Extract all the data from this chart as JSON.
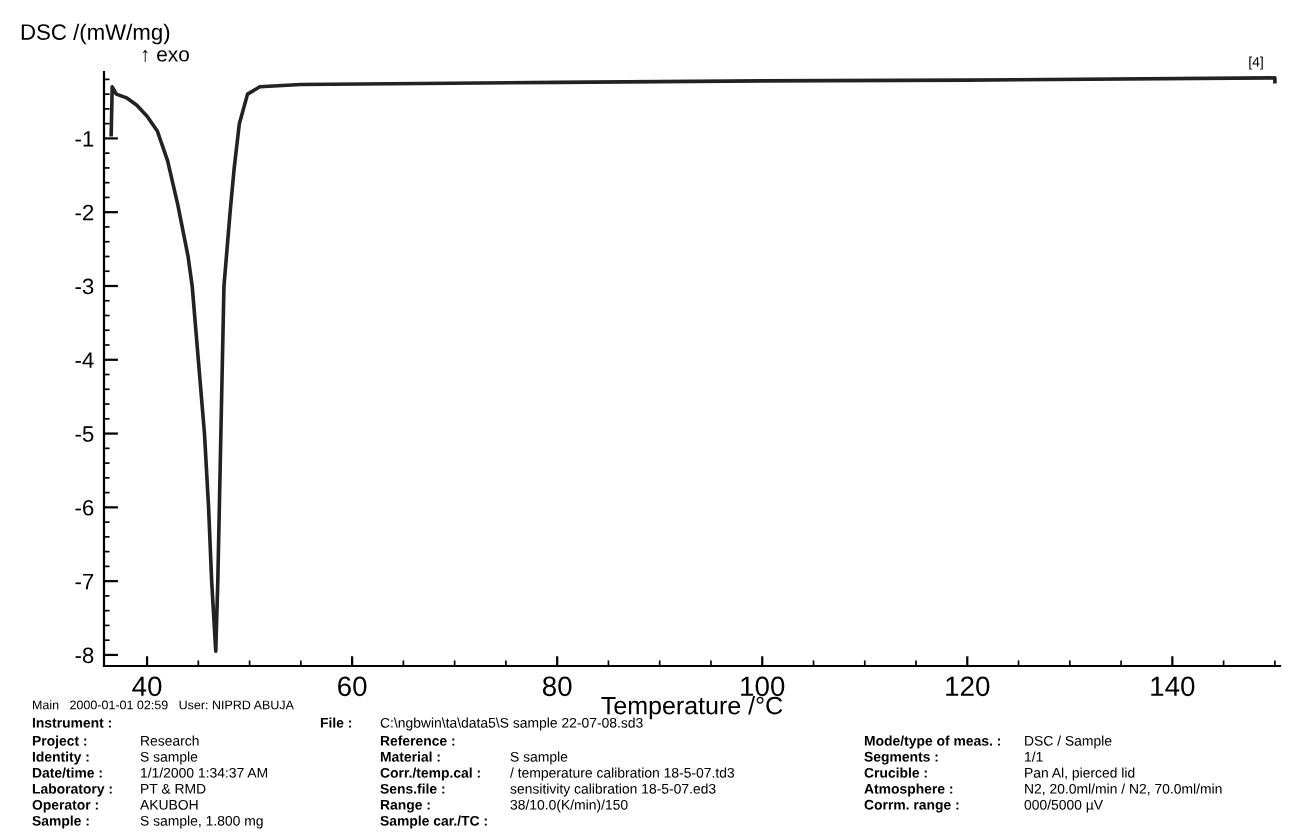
{
  "chart_data": {
    "type": "line",
    "xlabel": "Temperature /°C",
    "ylabel": "DSC /(mW/mg)",
    "xlim": [
      35.8,
      150.5
    ],
    "xticks": [
      40,
      60,
      80,
      100,
      120,
      140
    ],
    "ylim": [
      -8.15,
      -0.1
    ],
    "yticks": [
      -1,
      -2,
      -3,
      -4,
      -5,
      -6,
      -7,
      -8
    ],
    "grid": false,
    "legend": false,
    "marker": "none",
    "line_style": "solid",
    "series": [
      {
        "color": "#222222",
        "x": [
          36.5,
          36.6,
          37,
          38,
          39,
          40,
          41,
          42,
          43,
          44,
          44.4,
          45,
          45.6,
          46,
          46.3,
          46.7,
          46.9,
          47.05,
          47.2,
          47.35,
          47.5,
          48.1,
          48.5,
          49,
          49.8,
          51,
          55,
          80,
          100,
          120,
          150,
          150
        ],
        "values": [
          -0.95,
          -0.3,
          -0.4,
          -0.45,
          -0.55,
          -0.7,
          -0.9,
          -1.3,
          -1.9,
          -2.6,
          -3,
          -4,
          -5,
          -6,
          -7,
          -7.95,
          -7,
          -6,
          -5,
          -4,
          -3,
          -2,
          -1.4,
          -0.8,
          -0.4,
          -0.3,
          -0.27,
          -0.24,
          -0.22,
          -0.21,
          -0.18,
          -0.23
        ]
      }
    ],
    "annotations": [
      "↑ exo",
      {
        "text": "[4]",
        "x": 150,
        "y": -0.18
      },
      "Main   2000-01-01 02:59   User: NIPRD ABUJA",
      "Instrument :",
      "File :",
      "C:\\ngbwin\\ta\\data5\\S sample 22-07-08.sd3",
      "Project :",
      "Research",
      "Identity :",
      "S sample",
      "Date/time :",
      "1/1/2000 1:34:37 AM",
      "Laboratory :",
      "PT & RMD",
      "Operator :",
      "AKUBOH",
      "Sample :",
      "S sample, 1.800 mg",
      "Reference :",
      "Material :",
      "S sample",
      "Corr./temp.cal :",
      "/ temperature calibration 18-5-07.td3",
      "Sens.file :",
      "sensitivity calibration 18-5-07.ed3",
      "Range :",
      "38/10.0(K/min)/150",
      "Sample car./TC :",
      "Mode/type of meas. :",
      "DSC / Sample",
      "Segments :",
      "1/1",
      "Crucible :",
      "Pan Al, pierced lid",
      "Atmosphere :",
      "N2, 20.0ml/min / N2, 70.0ml/min",
      "Corrm. range :",
      "000/5000 µV"
    ]
  }
}
